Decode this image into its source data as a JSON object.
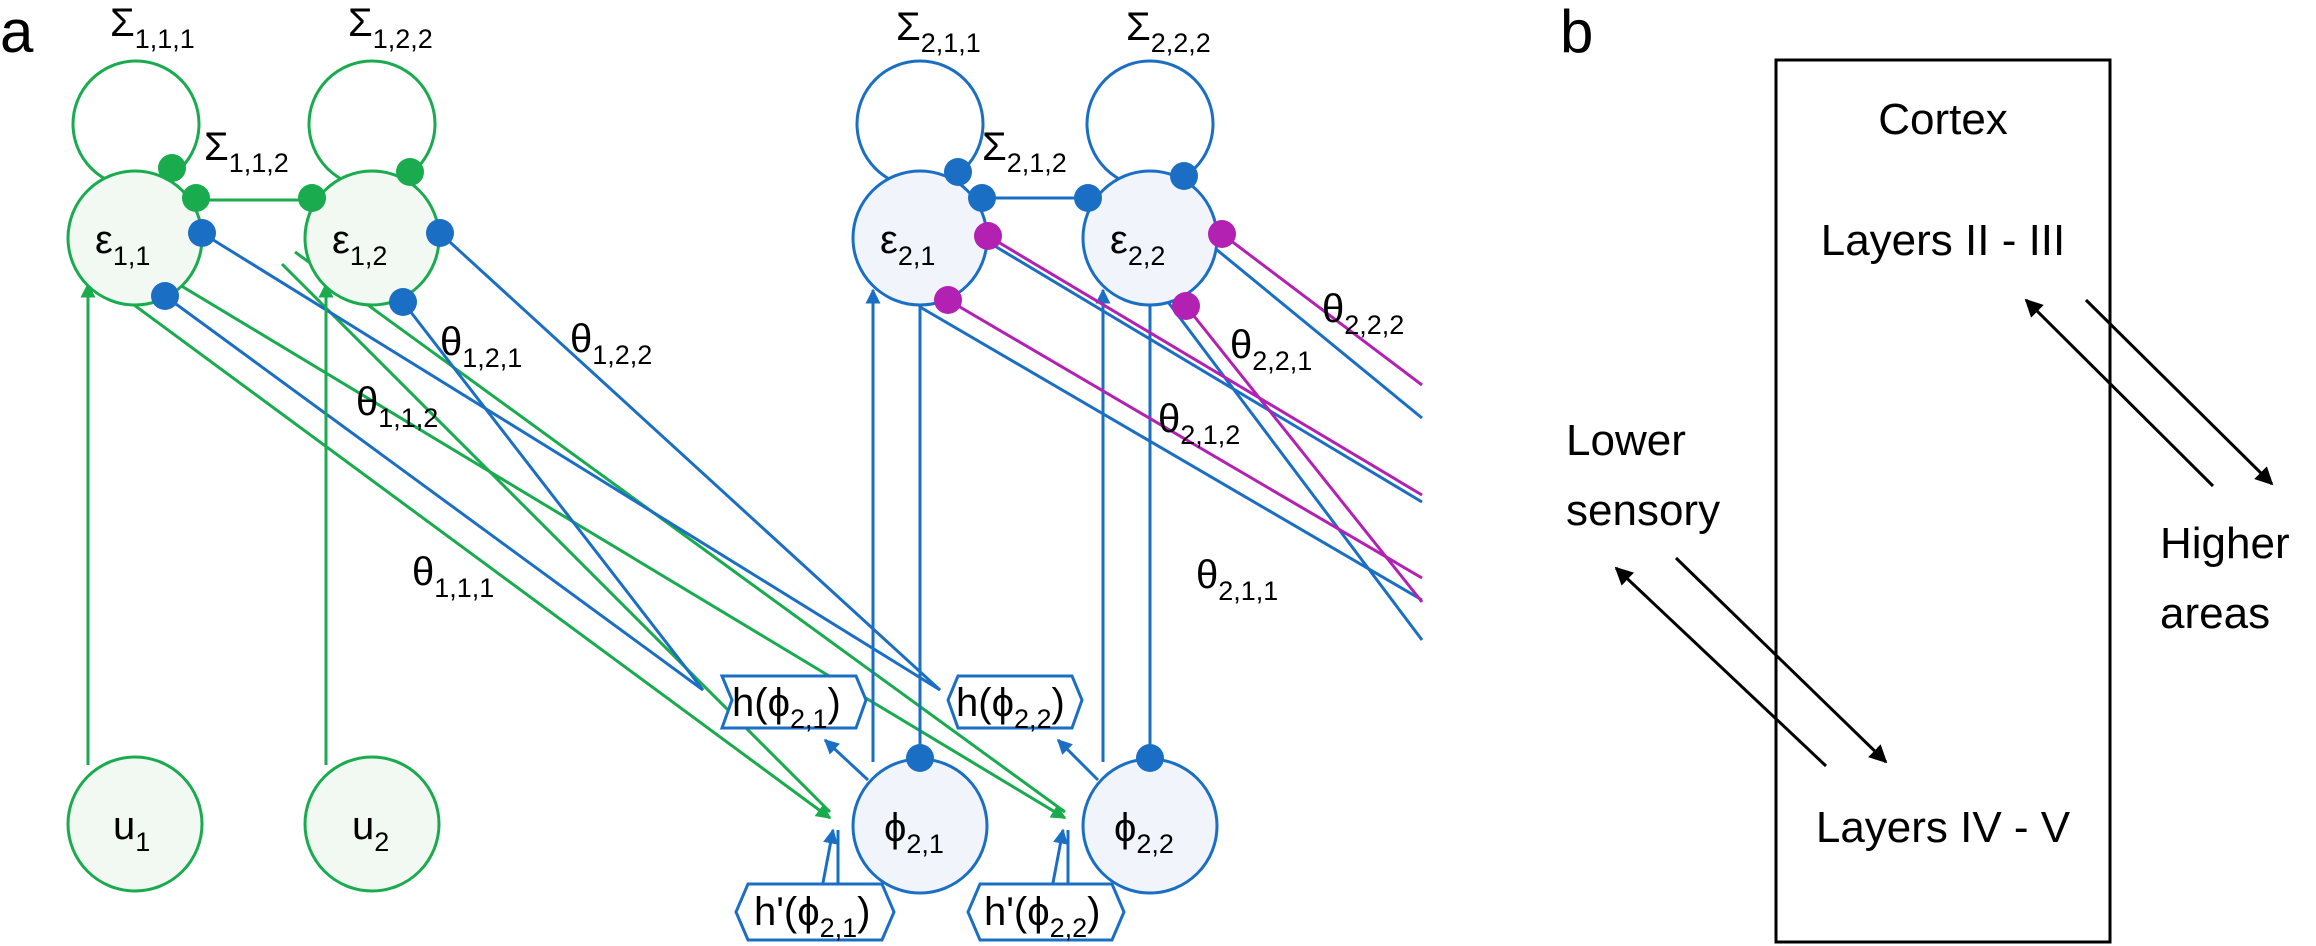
{
  "panels": {
    "a": {
      "label": "a"
    },
    "b": {
      "label": "b"
    }
  },
  "colors": {
    "green": "#1aab4f",
    "blue": "#1a6fc4",
    "magenta": "#b321b3",
    "green_fill": "#f2f8f2",
    "blue_fill": "#f1f4fa",
    "black": "#000000"
  },
  "nodes": {
    "eps_1_1": {
      "main": "ε",
      "sub": "1,1"
    },
    "eps_1_2": {
      "main": "ε",
      "sub": "1,2"
    },
    "eps_2_1": {
      "main": "ε",
      "sub": "2,1"
    },
    "eps_2_2": {
      "main": "ε",
      "sub": "2,2"
    },
    "u_1": {
      "main": "u",
      "sub": "1"
    },
    "u_2": {
      "main": "u",
      "sub": "2"
    },
    "phi_2_1": {
      "main": "ϕ",
      "sub": "2,1"
    },
    "phi_2_2": {
      "main": "ϕ",
      "sub": "2,2"
    }
  },
  "sigma_labels": {
    "s_1_1_1": {
      "main": "Σ",
      "sub": "1,1,1"
    },
    "s_1_2_2": {
      "main": "Σ",
      "sub": "1,2,2"
    },
    "s_1_1_2": {
      "main": "Σ",
      "sub": "1,1,2"
    },
    "s_2_1_1": {
      "main": "Σ",
      "sub": "2,1,1"
    },
    "s_2_2_2": {
      "main": "Σ",
      "sub": "2,2,2"
    },
    "s_2_1_2": {
      "main": "Σ",
      "sub": "2,1,2"
    }
  },
  "theta_labels": {
    "t_1_2_2": {
      "main": "θ",
      "sub": "1,2,2"
    },
    "t_1_2_1": {
      "main": "θ",
      "sub": "1,2,1"
    },
    "t_1_1_2": {
      "main": "θ",
      "sub": "1,1,2"
    },
    "t_1_1_1": {
      "main": "θ",
      "sub": "1,1,1"
    },
    "t_2_2_2": {
      "main": "θ",
      "sub": "2,2,2"
    },
    "t_2_2_1": {
      "main": "θ",
      "sub": "2,2,1"
    },
    "t_2_1_2": {
      "main": "θ",
      "sub": "2,1,2"
    },
    "t_2_1_1": {
      "main": "θ",
      "sub": "2,1,1"
    }
  },
  "function_boxes": {
    "h_2_1": {
      "pre": "h(",
      "main": "ϕ",
      "sub": "2,1",
      "post": ")"
    },
    "h_2_2": {
      "pre": "h(",
      "main": "ϕ",
      "sub": "2,2",
      "post": ")"
    },
    "hp_2_1": {
      "pre": "h'(",
      "main": "ϕ",
      "sub": "2,1",
      "post": ")"
    },
    "hp_2_2": {
      "pre": "h'(",
      "main": "ϕ",
      "sub": "2,2",
      "post": ")"
    }
  },
  "cortex": {
    "title": "Cortex",
    "upper_layers": "Layers II - III",
    "lower_layers": "Layers IV - V",
    "lower_sensory_line1": "Lower",
    "lower_sensory_line2": "sensory",
    "higher_areas_line1": "Higher",
    "higher_areas_line2": "areas"
  }
}
